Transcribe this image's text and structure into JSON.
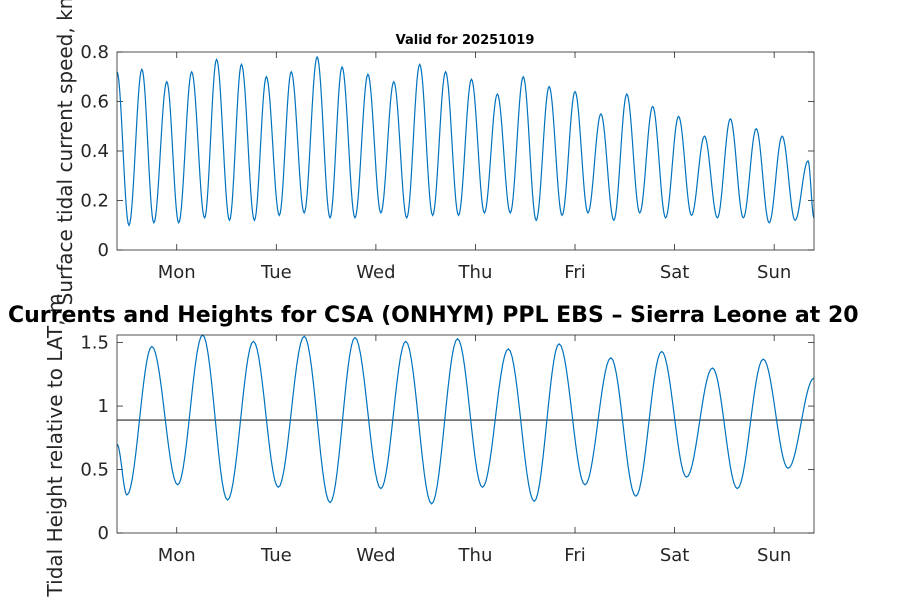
{
  "chart_data": [
    {
      "type": "line",
      "title": "Valid for 20251019",
      "ylabel": "Surface tidal current speed, kn",
      "ylim": [
        0,
        0.8
      ],
      "yticks": [
        0,
        0.2,
        0.4,
        0.6,
        0.8
      ],
      "ytick_labels": [
        "0",
        "0.2",
        "0.4",
        "0.6",
        "0.8"
      ],
      "xlim": [
        0.4,
        7.4
      ],
      "xtick_positions": [
        1,
        2,
        3,
        4,
        5,
        6,
        7
      ],
      "xtick_labels": [
        "Mon",
        "Tue",
        "Wed",
        "Thu",
        "Fri",
        "Sat",
        "Sun"
      ],
      "line_color": "#0072BD",
      "series": [
        {
          "name": "speed",
          "peaks": [
            [
              0.4,
              0.72
            ],
            [
              0.65,
              0.73
            ],
            [
              0.9,
              0.68
            ],
            [
              1.15,
              0.72
            ],
            [
              1.4,
              0.77
            ],
            [
              1.65,
              0.75
            ],
            [
              1.9,
              0.7
            ],
            [
              2.15,
              0.72
            ],
            [
              2.41,
              0.78
            ],
            [
              2.66,
              0.74
            ],
            [
              2.92,
              0.71
            ],
            [
              3.18,
              0.68
            ],
            [
              3.44,
              0.75
            ],
            [
              3.7,
              0.72
            ],
            [
              3.96,
              0.69
            ],
            [
              4.22,
              0.63
            ],
            [
              4.48,
              0.7
            ],
            [
              4.74,
              0.66
            ],
            [
              5.0,
              0.64
            ],
            [
              5.26,
              0.55
            ],
            [
              5.52,
              0.63
            ],
            [
              5.78,
              0.58
            ],
            [
              6.04,
              0.54
            ],
            [
              6.3,
              0.46
            ],
            [
              6.56,
              0.53
            ],
            [
              6.82,
              0.49
            ],
            [
              7.08,
              0.46
            ],
            [
              7.34,
              0.36
            ]
          ],
          "troughs": [
            [
              0.52,
              0.1
            ],
            [
              0.77,
              0.11
            ],
            [
              1.02,
              0.11
            ],
            [
              1.28,
              0.13
            ],
            [
              1.53,
              0.12
            ],
            [
              1.78,
              0.12
            ],
            [
              2.03,
              0.14
            ],
            [
              2.28,
              0.15
            ],
            [
              2.54,
              0.13
            ],
            [
              2.79,
              0.13
            ],
            [
              3.05,
              0.15
            ],
            [
              3.31,
              0.13
            ],
            [
              3.57,
              0.14
            ],
            [
              3.83,
              0.14
            ],
            [
              4.09,
              0.15
            ],
            [
              4.35,
              0.15
            ],
            [
              4.61,
              0.12
            ],
            [
              4.87,
              0.14
            ],
            [
              5.13,
              0.15
            ],
            [
              5.39,
              0.12
            ],
            [
              5.65,
              0.15
            ],
            [
              5.91,
              0.13
            ],
            [
              6.17,
              0.14
            ],
            [
              6.43,
              0.13
            ],
            [
              6.69,
              0.13
            ],
            [
              6.95,
              0.11
            ],
            [
              7.21,
              0.12
            ],
            [
              7.4,
              0.13
            ]
          ]
        }
      ]
    },
    {
      "type": "line",
      "title": "Currents and Heights for CSA (ONHYM) PPL EBS  – Sierra Leone at 20",
      "ylabel": "Tidal Height relative to LAT, m",
      "ylim": [
        0,
        1.56
      ],
      "yticks": [
        0,
        0.5,
        1,
        1.5
      ],
      "ytick_labels": [
        "0",
        "0.5",
        "1",
        "1.5"
      ],
      "xlim": [
        0.4,
        7.4
      ],
      "xtick_positions": [
        1,
        2,
        3,
        4,
        5,
        6,
        7
      ],
      "xtick_labels": [
        "Mon",
        "Tue",
        "Wed",
        "Thu",
        "Fri",
        "Sat",
        "Sun"
      ],
      "line_color": "#0072BD",
      "reference_line": {
        "value": 0.89,
        "color": "#262626"
      },
      "series": [
        {
          "name": "height",
          "extrema": [
            [
              0.4,
              0.7
            ],
            [
              0.5,
              0.3
            ],
            [
              0.75,
              1.47
            ],
            [
              1.01,
              0.38
            ],
            [
              1.26,
              1.56
            ],
            [
              1.51,
              0.26
            ],
            [
              1.77,
              1.51
            ],
            [
              2.02,
              0.36
            ],
            [
              2.28,
              1.55
            ],
            [
              2.54,
              0.24
            ],
            [
              2.79,
              1.54
            ],
            [
              3.05,
              0.35
            ],
            [
              3.3,
              1.51
            ],
            [
              3.56,
              0.23
            ],
            [
              3.82,
              1.53
            ],
            [
              4.07,
              0.36
            ],
            [
              4.33,
              1.45
            ],
            [
              4.59,
              0.25
            ],
            [
              4.84,
              1.49
            ],
            [
              5.1,
              0.38
            ],
            [
              5.36,
              1.38
            ],
            [
              5.61,
              0.29
            ],
            [
              5.87,
              1.43
            ],
            [
              6.12,
              0.44
            ],
            [
              6.38,
              1.3
            ],
            [
              6.63,
              0.35
            ],
            [
              6.89,
              1.37
            ],
            [
              7.14,
              0.51
            ],
            [
              7.4,
              1.22
            ]
          ]
        }
      ]
    }
  ]
}
